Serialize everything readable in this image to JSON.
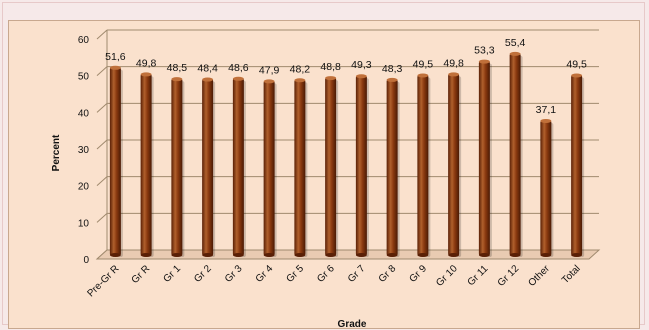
{
  "chart_data": {
    "type": "bar",
    "title": "",
    "xlabel": "Grade",
    "ylabel": "Percent",
    "ylim": [
      0,
      60
    ],
    "yticks": [
      0,
      10,
      20,
      30,
      40,
      50,
      60
    ],
    "grid": true,
    "legend": "none",
    "categories": [
      "Pre-Gr R",
      "Gr R",
      "Gr 1",
      "Gr 2",
      "Gr 3",
      "Gr 4",
      "Gr 5",
      "Gr 6",
      "Gr 7",
      "Gr 8",
      "Gr 9",
      "Gr 10",
      "Gr 11",
      "Gr 12",
      "Other",
      "Total"
    ],
    "values": [
      51.6,
      49.8,
      48.5,
      48.4,
      48.6,
      47.9,
      48.2,
      48.8,
      49.3,
      48.3,
      49.5,
      49.8,
      53.3,
      55.4,
      37.1,
      49.5
    ],
    "value_labels": [
      "51,6",
      "49,8",
      "48,5",
      "48,4",
      "48,6",
      "47,9",
      "48,2",
      "48,8",
      "49,3",
      "48,3",
      "49,5",
      "49,8",
      "53,3",
      "55,4",
      "37,1",
      "49,5"
    ],
    "colors": {
      "bar": "#8b3a10",
      "bar_light": "#c0703a",
      "bar_dark": "#5a2006",
      "grid": "#a08a6e",
      "panel": "#fae1cd",
      "page": "#f6e9e9"
    }
  }
}
